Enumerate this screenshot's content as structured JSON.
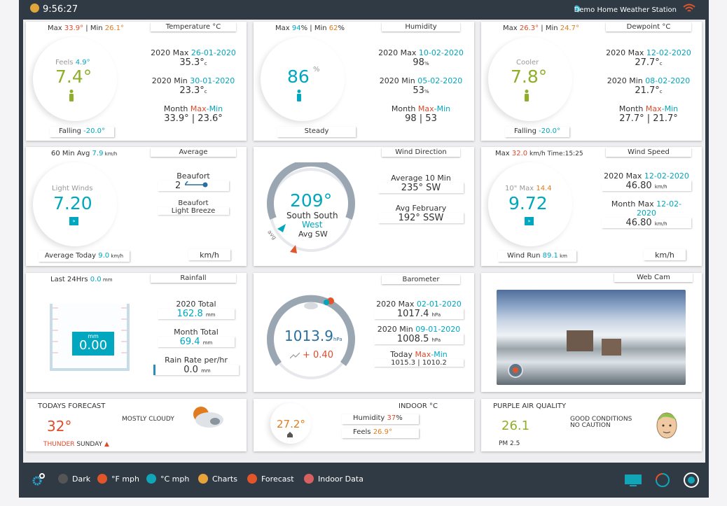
{
  "header": {
    "time": "9:56:27",
    "station": "Demo Home Weather Station"
  },
  "temperature": {
    "title": "Temperature °C",
    "max_label": "Max ",
    "max_value": "33.9°",
    "min_label": " | Min ",
    "min_value": "26.1°",
    "feels_label": "Feels ",
    "feels_value": "4.9°",
    "value": "7.4°",
    "trend_label": "Falling ",
    "trend_value": "-20.0°",
    "year_max_label": "2020 Max ",
    "year_max_date": "26-01-2020",
    "year_max_value": "35.3°",
    "year_min_label": "2020 Min ",
    "year_min_date": "30-01-2020",
    "year_min_value": "23.3°",
    "month_label": "Month ",
    "month_max": "Max",
    "month_min": "-Min",
    "month_values": "33.9° | 23.6°",
    "unit": "c"
  },
  "humidity": {
    "title": "Humidity",
    "max_label": "Max ",
    "max_value": "94",
    "min_label": "% | Min ",
    "min_value": "62",
    "pct": "%",
    "value": "86",
    "trend": "Steady",
    "year_max_label": "2020 Max ",
    "year_max_date": "10-02-2020",
    "year_max_value": "98",
    "year_min_label": "2020 Min ",
    "year_min_date": "05-02-2020",
    "year_min_value": "53",
    "month_label": "Month ",
    "month_max": "Max",
    "month_min": "-Min",
    "month_values": "98 | 53"
  },
  "dewpoint": {
    "title": "Dewpoint °C",
    "max_label": "Max ",
    "max_value": "26.3°",
    "min_label": " | Min ",
    "min_value": "24.7°",
    "feels_label": "Cooler",
    "value": "7.8°",
    "trend_label": "Falling ",
    "trend_value": "-20.0°",
    "year_max_label": "2020 Max ",
    "year_max_date": "12-02-2020",
    "year_max_value": "27.7°",
    "year_min_label": "2020 Min ",
    "year_min_date": "08-02-2020",
    "year_min_value": "21.7°",
    "month_label": "Month ",
    "month_max": "Max",
    "month_min": "-Min",
    "month_values": "27.7° | 21.7°",
    "unit": "c"
  },
  "average": {
    "title": "Average",
    "avg_label": "60 Min Avg ",
    "avg_value": "7.9",
    "avg_unit": " km/h",
    "desc": "Light Winds",
    "value": "7.20",
    "beaufort_label": "Beaufort",
    "beaufort_value": "2",
    "beaufort_label2": "Beaufort",
    "beaufort_desc": "Light Breeze",
    "today_label": "Average Today ",
    "today_value": "9.0",
    "today_unit": " km/h",
    "unit": "km/h"
  },
  "wind_direction": {
    "title": "Wind Direction",
    "degrees": "209°",
    "line1": "South South",
    "line2": "West",
    "avg": "Avg SW",
    "avg10_label": "Average 10 Min",
    "avg10_value": "235°  SW",
    "avgfeb_label": "Avg February",
    "avgfeb_value": "192°  SSW",
    "avg_marker": "avg"
  },
  "wind_speed": {
    "title": "Wind Speed",
    "max_label": "Max ",
    "max_value": "32.0",
    "max_unit": " km/h Time:15:25",
    "tenmax_label": "10\" Max ",
    "tenmax_value": "14.4",
    "value": "9.72",
    "year_max_label": "2020 Max ",
    "year_max_date": "12-02-2020",
    "year_max_value": "46.80",
    "month_max_label": "Month Max ",
    "month_max_date": "12-02-2020",
    "month_max_value": "46.80",
    "unit_small": "km/h",
    "run_label": "Wind Run ",
    "run_value": "89.1",
    "run_unit": " km",
    "unit": "km/h"
  },
  "rainfall": {
    "title": "Rainfall",
    "last24_label": "Last 24Hrs ",
    "last24_value": "0.0",
    "last24_unit": " mm",
    "gauge_unit": "mm",
    "gauge_value": "0.00",
    "fill": 0.0,
    "year_label": "2020 Total",
    "year_value": "162.8",
    "month_label": "Month Total",
    "month_value": "69.4",
    "rate_label": "Rain Rate per/hr",
    "rate_value": "0.0",
    "unit": "mm"
  },
  "barometer": {
    "title": "Barometer",
    "value": "1013.9",
    "unit": "hPa",
    "change": "+ 0.40",
    "year_max_label": "2020 Max ",
    "year_max_date": "02-01-2020",
    "year_max_value": "1017.4",
    "year_min_label": "2020 Min ",
    "year_min_date": "09-01-2020",
    "year_min_value": "1008.5",
    "today_label": "Today ",
    "today_max": "Max",
    "today_min": "-Min",
    "today_values": "1015.3 | 1010.2"
  },
  "webcam": {
    "title": "Web Cam"
  },
  "forecast": {
    "title": "TODAYS FORECAST",
    "temp": "32°",
    "desc": "MOSTLY CLOUDY",
    "note_label": "THUNDER",
    "note_day": " SUNDAY"
  },
  "indoor": {
    "title": "INDOOR °C",
    "value": "27.2°",
    "humidity_label": "Humidity ",
    "humidity_value": "37",
    "humidity_unit": "%",
    "feels_label": "Feels ",
    "feels_value": "26.9°"
  },
  "air": {
    "title": "PURPLE AIR QUALITY",
    "value": "26.1",
    "sub": "PM 2.5",
    "status1": "GOOD CONDITIONS",
    "status2": "NO CAUTION"
  },
  "footer": {
    "items": [
      "Dark",
      "°F mph",
      "°C mph",
      "Charts",
      "Forecast",
      "Indoor Data"
    ],
    "colors": [
      "#555555",
      "#e2552a",
      "#10a6b8",
      "#e8a33a",
      "#e2552a",
      "#d86060"
    ]
  },
  "colors": {
    "teal": "#00a7bf",
    "green": "#8faf2a",
    "orange": "#e07c1e",
    "red": "#e04a2a",
    "frame": "#2f3a44"
  }
}
